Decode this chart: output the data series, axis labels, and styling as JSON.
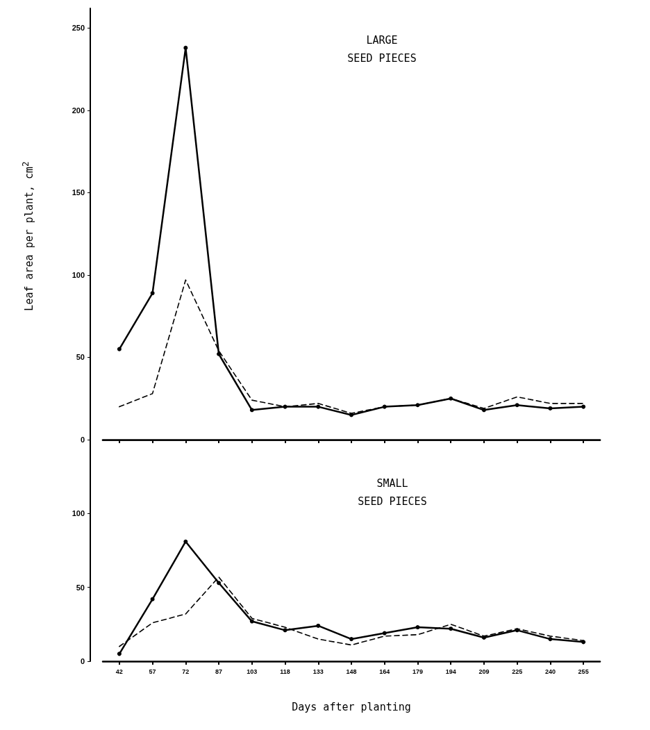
{
  "chart_data": [
    {
      "type": "line",
      "title": "LARGE SEED PIECES",
      "ylabel": "Leaf area per plant, cm$^{2}$",
      "categories": [
        "42",
        "57",
        "72",
        "87",
        "103",
        "118",
        "133",
        "148",
        "164",
        "179",
        "194",
        "209",
        "225",
        "240",
        "255"
      ],
      "series": [
        {
          "color": "#000000",
          "line_style": "solid",
          "marker": "circle",
          "values": [
            55,
            89,
            238,
            52,
            18,
            20,
            20,
            15,
            20,
            21,
            25,
            18,
            21,
            19,
            20
          ]
        },
        {
          "color": "#000000",
          "line_style": "dashed",
          "marker": "none",
          "values": [
            20,
            28,
            97,
            54,
            24,
            20,
            22,
            16,
            20,
            21,
            25,
            19,
            26,
            22,
            22
          ]
        }
      ],
      "ylim": [
        0,
        262
      ],
      "yticks": [
        0,
        50,
        100,
        150,
        200,
        250
      ],
      "grid": false,
      "tick_labels": "y"
    },
    {
      "type": "line",
      "title": "SMALL SEED PIECES",
      "xlabel": "Days after planting",
      "categories": [
        "42",
        "57",
        "72",
        "87",
        "103",
        "118",
        "133",
        "148",
        "164",
        "179",
        "194",
        "209",
        "225",
        "240",
        "255"
      ],
      "series": [
        {
          "color": "#000000",
          "line_style": "solid",
          "marker": "circle",
          "values": [
            5,
            42,
            81,
            53,
            27,
            21,
            24,
            15,
            19,
            23,
            22,
            16,
            21,
            15,
            13
          ]
        },
        {
          "color": "#000000",
          "line_style": "dashed",
          "marker": "none",
          "values": [
            10,
            26,
            32,
            57,
            29,
            23,
            15,
            11,
            17,
            18,
            25,
            17,
            22,
            17,
            14
          ]
        }
      ],
      "ylim": [
        0,
        150
      ],
      "yticks": [
        0,
        50,
        100
      ],
      "grid": false
    }
  ]
}
